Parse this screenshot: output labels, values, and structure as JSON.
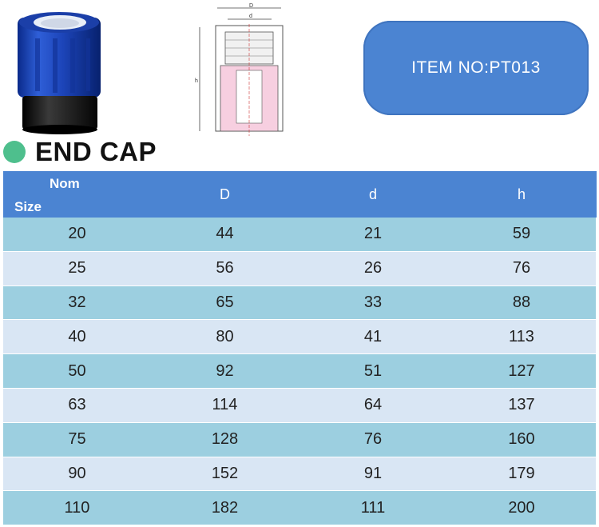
{
  "item_box": {
    "text": "ITEM NO:PT013"
  },
  "title": {
    "text": "END CAP"
  },
  "drawing_labels": {
    "D": "D",
    "d": "d",
    "h": "h"
  },
  "table": {
    "header": {
      "nom_line1": "Nom",
      "nom_line2": "Size",
      "D": "D",
      "d": "d",
      "h": "h"
    },
    "rows": [
      [
        "20",
        "44",
        "21",
        "59"
      ],
      [
        "25",
        "56",
        "26",
        "76"
      ],
      [
        "32",
        "65",
        "33",
        "88"
      ],
      [
        "40",
        "80",
        "41",
        "113"
      ],
      [
        "50",
        "92",
        "51",
        "127"
      ],
      [
        "63",
        "114",
        "64",
        "137"
      ],
      [
        "75",
        "128",
        "76",
        "160"
      ],
      [
        "90",
        "152",
        "91",
        "179"
      ],
      [
        "110",
        "182",
        "111",
        "200"
      ]
    ]
  },
  "colors": {
    "header_blue": "#4b84d2",
    "row_cyan": "#9ccfe0",
    "row_light": "#d9e6f4",
    "title_dot": "#4ebf8d"
  }
}
